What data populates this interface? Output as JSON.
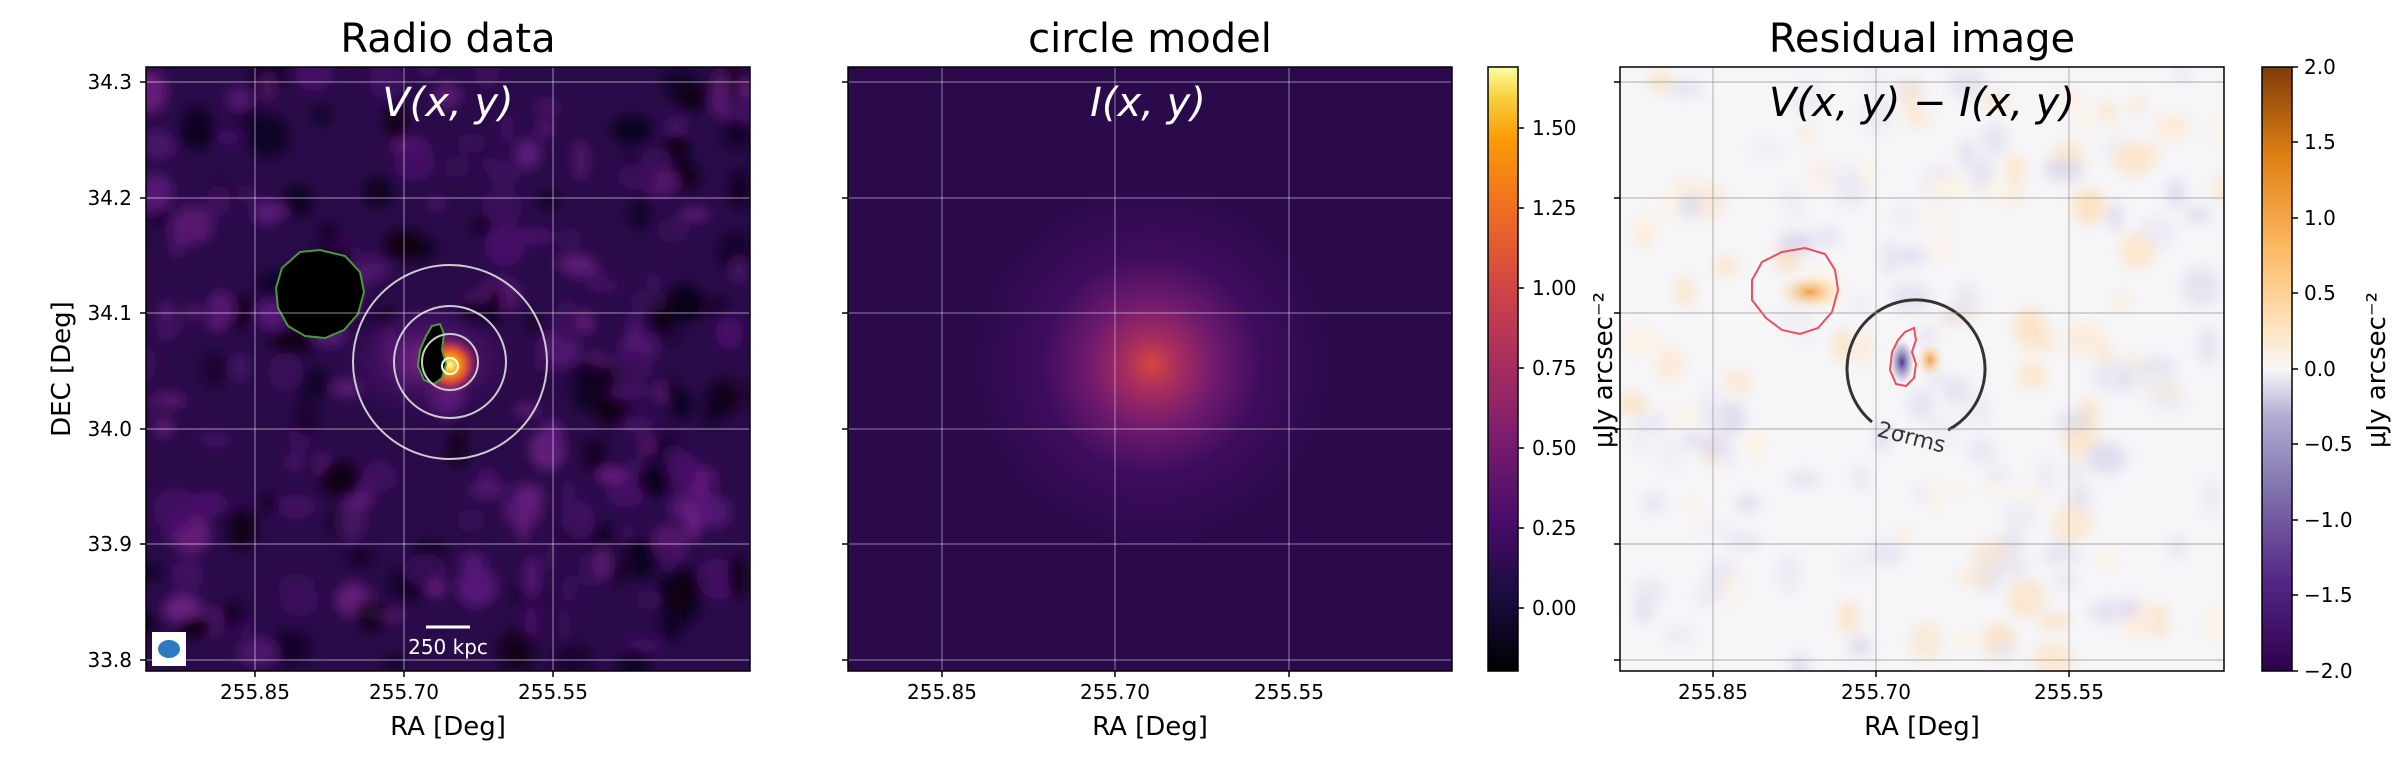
{
  "panels": [
    {
      "title": "Radio data",
      "overlay": "V(x, y)",
      "xlabel": "RA [Deg]",
      "ylabel": "DEC [Deg]",
      "xticks": [
        "255.85",
        "255.70",
        "255.55"
      ],
      "yticks": [
        "34.3",
        "34.2",
        "34.1",
        "34.0",
        "33.9",
        "33.8"
      ],
      "scalebar_label": "250 kpc"
    },
    {
      "title": "circle model",
      "overlay": "I(x, y)",
      "xlabel": "RA [Deg]",
      "xticks": [
        "255.85",
        "255.70",
        "255.55"
      ],
      "colorbar": {
        "label": "μJy arcsec⁻²",
        "ticks": [
          "1.50",
          "1.25",
          "1.00",
          "0.75",
          "0.50",
          "0.25",
          "0.00"
        ]
      }
    },
    {
      "title": "Residual image",
      "overlay": "V(x, y) − I(x, y)",
      "xlabel": "RA [Deg]",
      "xticks": [
        "255.85",
        "255.70",
        "255.55"
      ],
      "contour_label": "2σrms",
      "colorbar": {
        "label": "μJy arcsec⁻²",
        "ticks": [
          "2.0",
          "1.5",
          "1.0",
          "0.5",
          "0.0",
          "−0.5",
          "−1.0",
          "−1.5",
          "−2.0"
        ]
      }
    }
  ],
  "colors": {
    "mask_contour": "#4a9a3a",
    "residual_contour": "#e8505a",
    "ring": "#cccccc",
    "beam": "#2d7bbf"
  }
}
